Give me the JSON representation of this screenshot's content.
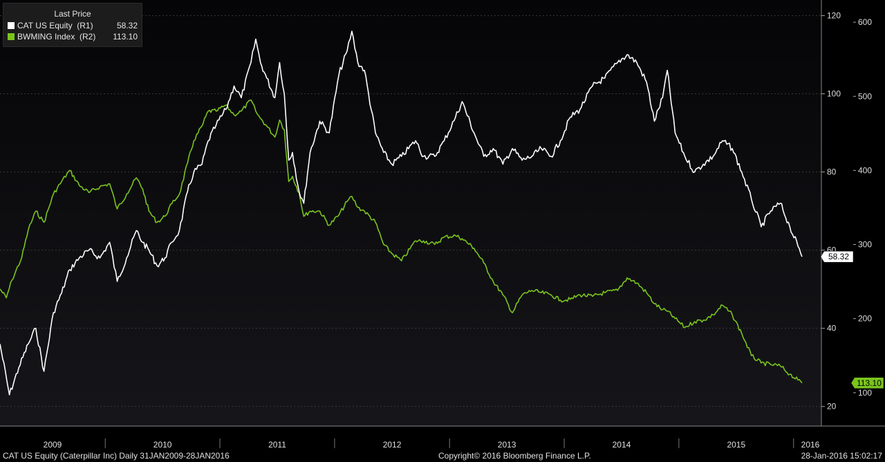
{
  "legend": {
    "title": "Last Price",
    "items": [
      {
        "label": "CAT US Equity  (R1)",
        "value": "58.32",
        "color": "#ffffff"
      },
      {
        "label": "BWMING Index  (R2)",
        "value": "113.10",
        "color": "#7ac41e"
      }
    ]
  },
  "footer": {
    "left": "CAT US Equity (Caterpillar Inc)  Daily 31JAN2009-28JAN2016",
    "center": "Copyright© 2016 Bloomberg Finance L.P.",
    "right": "28-Jan-2016 15:02:17"
  },
  "colors": {
    "background": "#000000",
    "plot_background": "#0b0b0e",
    "grid": "#3a3a3a",
    "cat": "#ffffff",
    "bwming": "#7ac41e"
  },
  "chart_data": {
    "type": "line",
    "title": "",
    "x_labels": [
      "2009",
      "2010",
      "2011",
      "2012",
      "2013",
      "2014",
      "2015",
      "2016"
    ],
    "x_range": [
      "2009-01-31",
      "2016-01-28"
    ],
    "y_axes": {
      "R1": {
        "min": 15,
        "max": 124,
        "ticks": [
          20,
          40,
          60,
          80,
          100,
          120
        ]
      },
      "R2": {
        "min": 55,
        "max": 630,
        "ticks": [
          100,
          200,
          300,
          400,
          500,
          600
        ]
      }
    },
    "grid": true,
    "legend_position": "top-left",
    "series": [
      {
        "name": "CAT US Equity  (R1)",
        "axis": "R1",
        "color": "#ffffff",
        "last_value": "58.32",
        "points": [
          [
            "2009-01-31",
            36
          ],
          [
            "2009-03-02",
            23
          ],
          [
            "2009-04-01",
            30
          ],
          [
            "2009-05-01",
            36
          ],
          [
            "2009-05-25",
            40
          ],
          [
            "2009-06-20",
            29
          ],
          [
            "2009-07-20",
            44
          ],
          [
            "2009-08-15",
            49
          ],
          [
            "2009-09-10",
            55
          ],
          [
            "2009-10-10",
            58
          ],
          [
            "2009-11-10",
            60
          ],
          [
            "2009-12-15",
            58
          ],
          [
            "2010-01-15",
            62
          ],
          [
            "2010-02-08",
            52
          ],
          [
            "2010-03-10",
            58
          ],
          [
            "2010-04-10",
            65
          ],
          [
            "2010-04-30",
            62
          ],
          [
            "2010-05-20",
            60
          ],
          [
            "2010-06-15",
            56
          ],
          [
            "2010-07-10",
            58
          ],
          [
            "2010-08-01",
            62
          ],
          [
            "2010-08-25",
            65
          ],
          [
            "2010-09-20",
            75
          ],
          [
            "2010-10-10",
            80
          ],
          [
            "2010-11-05",
            82
          ],
          [
            "2010-11-25",
            88
          ],
          [
            "2010-12-20",
            92
          ],
          [
            "2011-01-20",
            96
          ],
          [
            "2011-02-15",
            102
          ],
          [
            "2011-03-10",
            99
          ],
          [
            "2011-04-10",
            108
          ],
          [
            "2011-04-25",
            114
          ],
          [
            "2011-05-10",
            108
          ],
          [
            "2011-05-30",
            104
          ],
          [
            "2011-06-25",
            99
          ],
          [
            "2011-07-10",
            108
          ],
          [
            "2011-07-25",
            100
          ],
          [
            "2011-08-08",
            83
          ],
          [
            "2011-08-20",
            85
          ],
          [
            "2011-09-10",
            75
          ],
          [
            "2011-09-25",
            72
          ],
          [
            "2011-10-15",
            85
          ],
          [
            "2011-11-15",
            93
          ],
          [
            "2011-12-15",
            90
          ],
          [
            "2012-01-15",
            105
          ],
          [
            "2012-02-10",
            111
          ],
          [
            "2012-02-25",
            116
          ],
          [
            "2012-03-15",
            108
          ],
          [
            "2012-04-05",
            106
          ],
          [
            "2012-05-10",
            90
          ],
          [
            "2012-06-05",
            85
          ],
          [
            "2012-07-01",
            82
          ],
          [
            "2012-08-01",
            84
          ],
          [
            "2012-09-15",
            88
          ],
          [
            "2012-10-10",
            84
          ],
          [
            "2012-11-15",
            84
          ],
          [
            "2012-12-15",
            88
          ],
          [
            "2013-01-20",
            94
          ],
          [
            "2013-02-10",
            98
          ],
          [
            "2013-03-20",
            90
          ],
          [
            "2013-04-20",
            84
          ],
          [
            "2013-05-20",
            86
          ],
          [
            "2013-06-20",
            82
          ],
          [
            "2013-07-20",
            86
          ],
          [
            "2013-08-20",
            83
          ],
          [
            "2013-09-20",
            84
          ],
          [
            "2013-10-20",
            86
          ],
          [
            "2013-11-20",
            84
          ],
          [
            "2013-12-20",
            88
          ],
          [
            "2014-01-20",
            94
          ],
          [
            "2014-02-20",
            96
          ],
          [
            "2014-04-01",
            102
          ],
          [
            "2014-05-10",
            104
          ],
          [
            "2014-06-20",
            108
          ],
          [
            "2014-07-20",
            110
          ],
          [
            "2014-08-20",
            108
          ],
          [
            "2014-09-20",
            103
          ],
          [
            "2014-10-15",
            93
          ],
          [
            "2014-11-10",
            99
          ],
          [
            "2014-11-25",
            106
          ],
          [
            "2014-12-20",
            90
          ],
          [
            "2015-01-20",
            84
          ],
          [
            "2015-02-20",
            80
          ],
          [
            "2015-03-20",
            82
          ],
          [
            "2015-04-20",
            84
          ],
          [
            "2015-05-20",
            88
          ],
          [
            "2015-06-20",
            86
          ],
          [
            "2015-07-20",
            80
          ],
          [
            "2015-08-20",
            73
          ],
          [
            "2015-09-20",
            66
          ],
          [
            "2015-10-20",
            70
          ],
          [
            "2015-11-20",
            72
          ],
          [
            "2015-12-20",
            66
          ],
          [
            "2016-01-15",
            61
          ],
          [
            "2016-01-28",
            58.32
          ]
        ]
      },
      {
        "name": "BWMING Index  (R2)",
        "axis": "R2",
        "color": "#7ac41e",
        "last_value": "113.10",
        "points": [
          [
            "2009-01-31",
            240
          ],
          [
            "2009-02-20",
            228
          ],
          [
            "2009-03-10",
            252
          ],
          [
            "2009-04-10",
            282
          ],
          [
            "2009-05-01",
            320
          ],
          [
            "2009-05-25",
            345
          ],
          [
            "2009-06-20",
            330
          ],
          [
            "2009-07-20",
            368
          ],
          [
            "2009-08-15",
            385
          ],
          [
            "2009-09-10",
            400
          ],
          [
            "2009-10-10",
            380
          ],
          [
            "2009-11-10",
            370
          ],
          [
            "2009-12-15",
            378
          ],
          [
            "2010-01-15",
            382
          ],
          [
            "2010-02-08",
            348
          ],
          [
            "2010-03-10",
            368
          ],
          [
            "2010-04-10",
            390
          ],
          [
            "2010-04-30",
            375
          ],
          [
            "2010-05-20",
            345
          ],
          [
            "2010-06-15",
            330
          ],
          [
            "2010-07-10",
            338
          ],
          [
            "2010-08-01",
            355
          ],
          [
            "2010-08-25",
            368
          ],
          [
            "2010-09-20",
            410
          ],
          [
            "2010-10-10",
            440
          ],
          [
            "2010-11-05",
            460
          ],
          [
            "2010-11-25",
            480
          ],
          [
            "2010-12-20",
            480
          ],
          [
            "2011-01-20",
            488
          ],
          [
            "2011-02-15",
            475
          ],
          [
            "2011-03-10",
            480
          ],
          [
            "2011-04-10",
            495
          ],
          [
            "2011-04-25",
            480
          ],
          [
            "2011-05-10",
            470
          ],
          [
            "2011-05-30",
            460
          ],
          [
            "2011-06-25",
            445
          ],
          [
            "2011-07-10",
            468
          ],
          [
            "2011-07-25",
            455
          ],
          [
            "2011-08-08",
            385
          ],
          [
            "2011-08-20",
            392
          ],
          [
            "2011-09-10",
            370
          ],
          [
            "2011-09-25",
            338
          ],
          [
            "2011-10-15",
            345
          ],
          [
            "2011-11-15",
            345
          ],
          [
            "2011-12-15",
            326
          ],
          [
            "2012-01-15",
            340
          ],
          [
            "2012-02-10",
            358
          ],
          [
            "2012-02-25",
            365
          ],
          [
            "2012-03-15",
            350
          ],
          [
            "2012-04-05",
            345
          ],
          [
            "2012-05-10",
            330
          ],
          [
            "2012-06-05",
            300
          ],
          [
            "2012-07-01",
            288
          ],
          [
            "2012-08-01",
            278
          ],
          [
            "2012-09-15",
            305
          ],
          [
            "2012-10-10",
            305
          ],
          [
            "2012-11-15",
            300
          ],
          [
            "2012-12-15",
            310
          ],
          [
            "2013-01-20",
            312
          ],
          [
            "2013-02-10",
            308
          ],
          [
            "2013-03-20",
            295
          ],
          [
            "2013-04-20",
            275
          ],
          [
            "2013-05-20",
            250
          ],
          [
            "2013-06-20",
            232
          ],
          [
            "2013-07-20",
            208
          ],
          [
            "2013-08-20",
            232
          ],
          [
            "2013-09-20",
            238
          ],
          [
            "2013-10-20",
            235
          ],
          [
            "2013-11-20",
            232
          ],
          [
            "2013-12-20",
            225
          ],
          [
            "2014-01-20",
            226
          ],
          [
            "2014-02-20",
            232
          ],
          [
            "2014-04-01",
            230
          ],
          [
            "2014-05-10",
            235
          ],
          [
            "2014-06-20",
            238
          ],
          [
            "2014-07-20",
            255
          ],
          [
            "2014-08-20",
            248
          ],
          [
            "2014-09-20",
            235
          ],
          [
            "2014-10-15",
            220
          ],
          [
            "2014-11-10",
            212
          ],
          [
            "2014-11-25",
            210
          ],
          [
            "2014-12-20",
            200
          ],
          [
            "2015-01-20",
            188
          ],
          [
            "2015-02-20",
            196
          ],
          [
            "2015-03-20",
            198
          ],
          [
            "2015-04-20",
            205
          ],
          [
            "2015-05-20",
            218
          ],
          [
            "2015-06-20",
            205
          ],
          [
            "2015-07-20",
            180
          ],
          [
            "2015-08-20",
            150
          ],
          [
            "2015-09-20",
            140
          ],
          [
            "2015-10-20",
            138
          ],
          [
            "2015-11-20",
            136
          ],
          [
            "2015-12-20",
            125
          ],
          [
            "2016-01-15",
            117
          ],
          [
            "2016-01-28",
            113.1
          ]
        ]
      }
    ]
  }
}
